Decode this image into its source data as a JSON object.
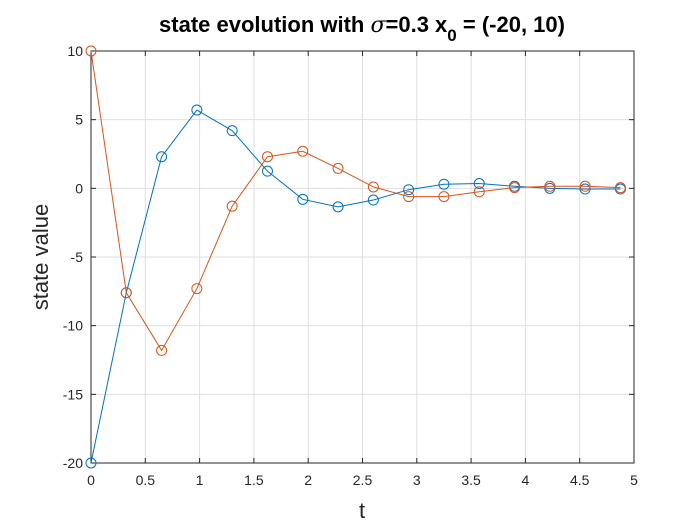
{
  "chart_data": {
    "type": "line",
    "title": {
      "prefix": "state evolution with ",
      "sigma_symbol": "σ",
      "middle": "=0.3 x",
      "subscript": "0",
      "suffix": " = (-20, 10)"
    },
    "xlabel": "t",
    "ylabel": "state value",
    "xlim": [
      0,
      5
    ],
    "ylim": [
      -20,
      10
    ],
    "xticks": [
      0,
      0.5,
      1,
      1.5,
      2,
      2.5,
      3,
      3.5,
      4,
      4.5,
      5
    ],
    "xtick_labels": [
      "0",
      "0.5",
      "1",
      "1.5",
      "2",
      "2.5",
      "3",
      "3.5",
      "4",
      "4.5",
      "5"
    ],
    "yticks": [
      -20,
      -15,
      -10,
      -5,
      0,
      5,
      10
    ],
    "ytick_labels": [
      "-20",
      "-15",
      "-10",
      "-5",
      "0",
      "5",
      "10"
    ],
    "grid": true,
    "marker": "circle",
    "x": [
      0,
      0.325,
      0.65,
      0.975,
      1.3,
      1.625,
      1.95,
      2.275,
      2.6,
      2.925,
      3.25,
      3.575,
      3.9,
      4.225,
      4.55,
      4.875
    ],
    "series": [
      {
        "color": "#0072BD",
        "values": [
          -20,
          -7.6,
          2.3,
          5.7,
          4.2,
          1.25,
          -0.8,
          -1.35,
          -0.85,
          -0.1,
          0.3,
          0.35,
          0.15,
          0.0,
          -0.05,
          -0.05
        ]
      },
      {
        "color": "#D95319",
        "values": [
          10,
          -7.6,
          -11.8,
          -7.3,
          -1.3,
          2.3,
          2.7,
          1.45,
          0.1,
          -0.6,
          -0.6,
          -0.25,
          0.05,
          0.15,
          0.15,
          0.05
        ]
      }
    ]
  }
}
